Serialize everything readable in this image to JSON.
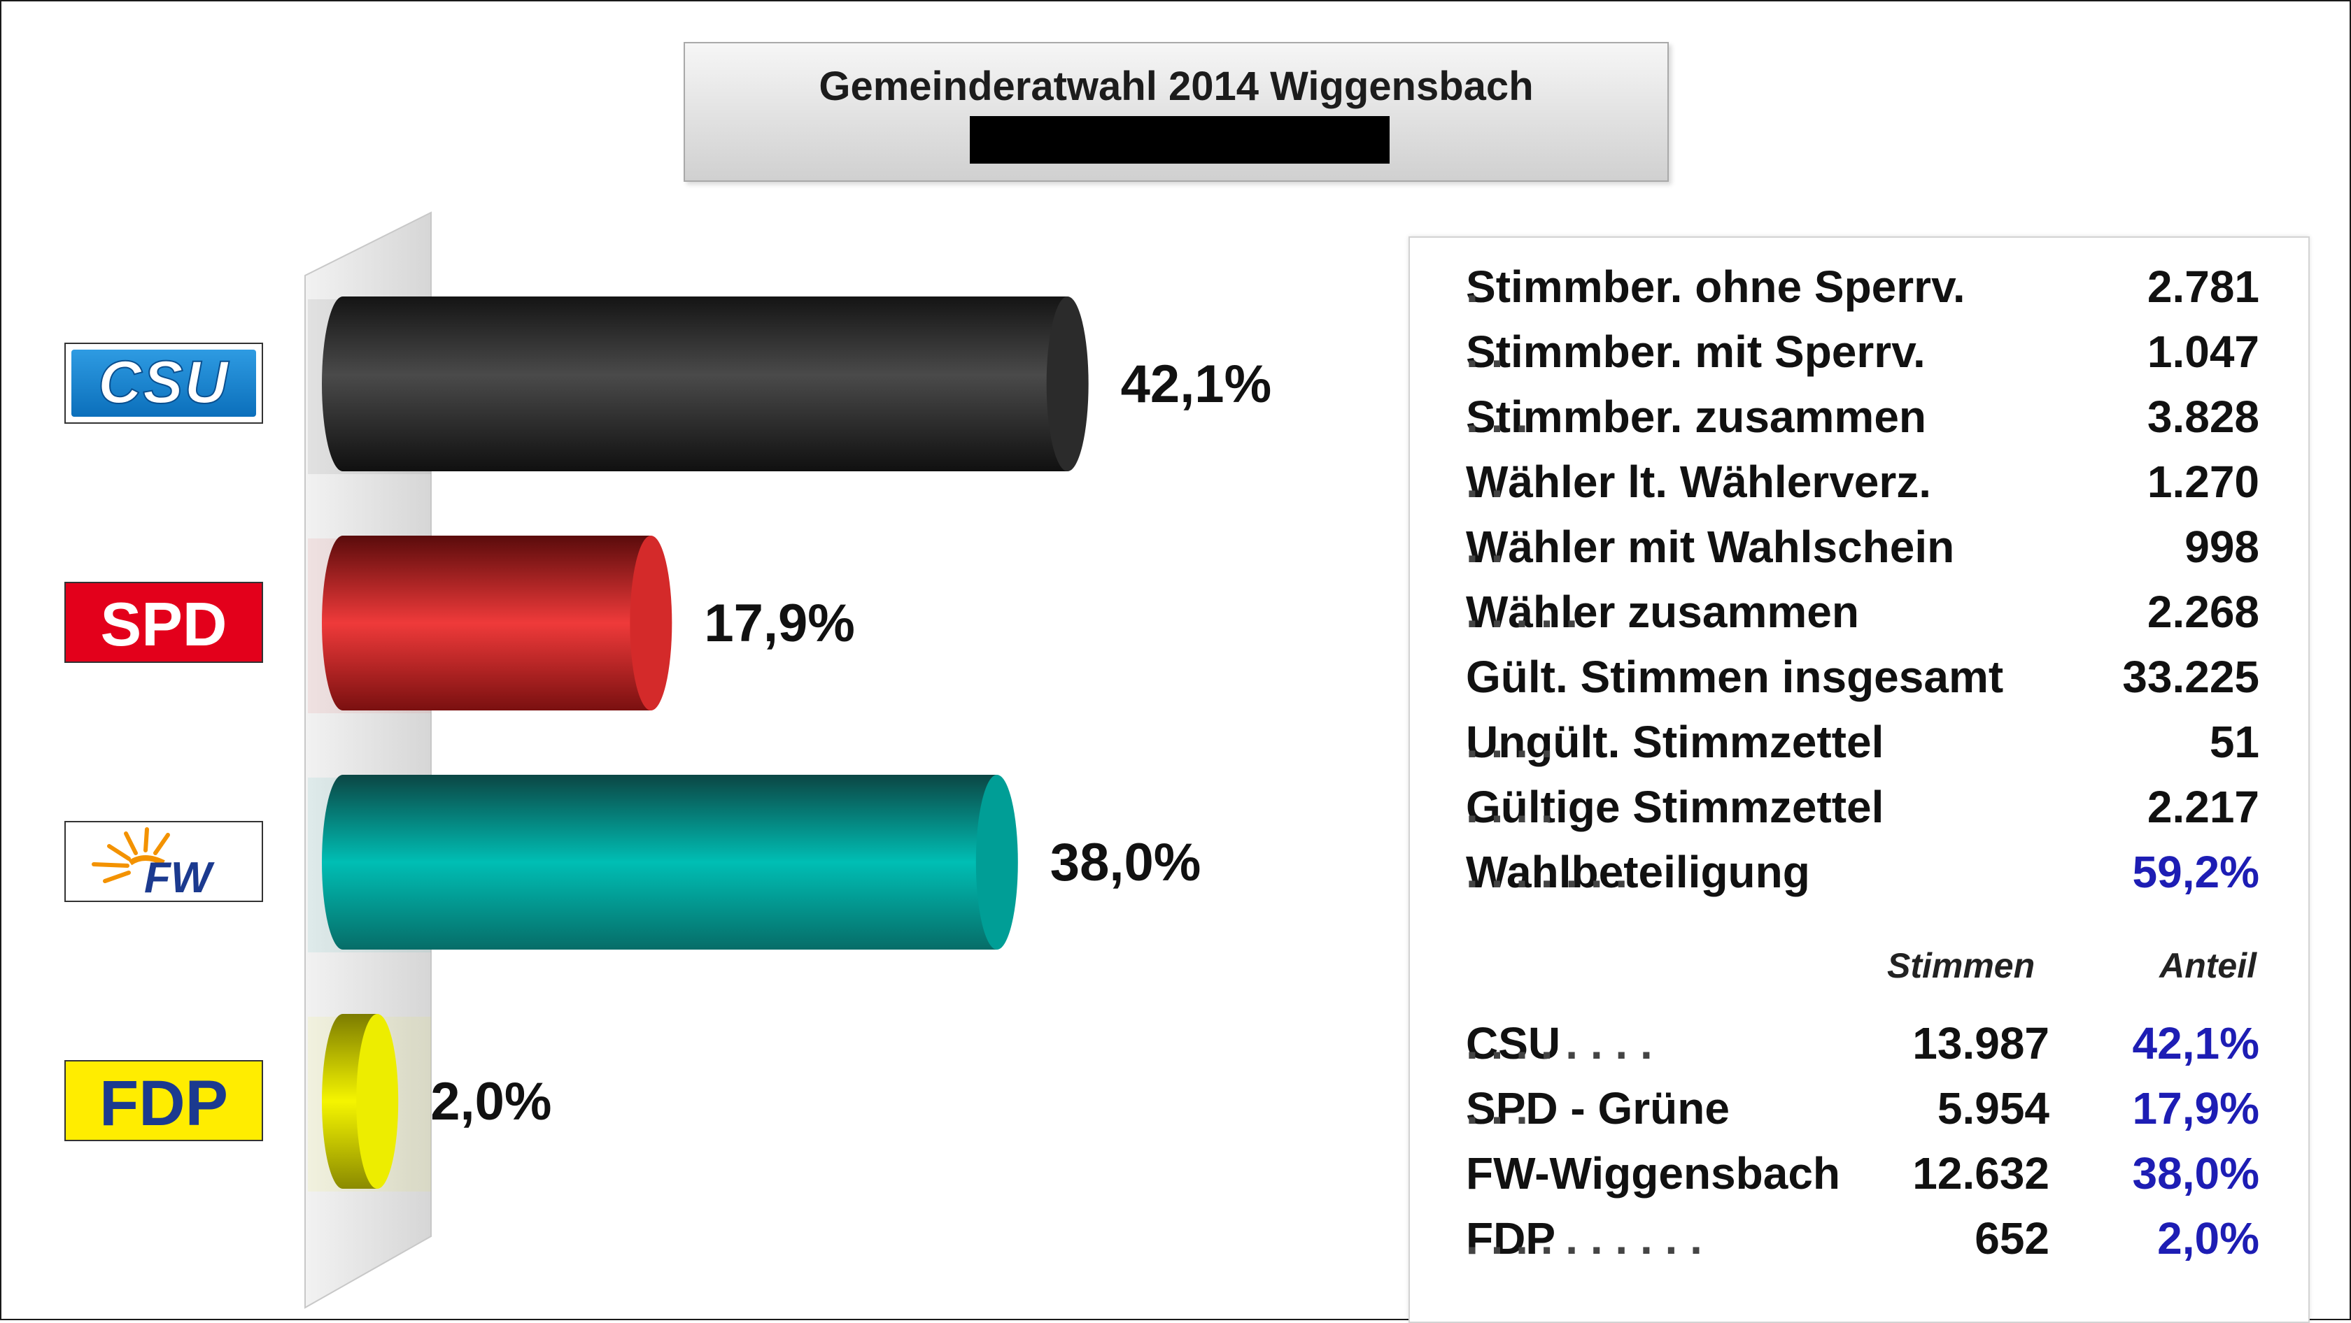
{
  "title": "Gemeinderatwahl 2014 Wiggensbach",
  "chart_data": {
    "type": "bar",
    "orientation": "horizontal",
    "categories": [
      "CSU",
      "SPD",
      "FW",
      "FDP"
    ],
    "values": [
      42.1,
      17.9,
      38.0,
      2.0
    ],
    "data_labels": [
      "42,1%",
      "17,9%",
      "38,0%",
      "2,0%"
    ],
    "colors": [
      "#2b2b2b",
      "#d42a2a",
      "#009e96",
      "#eded00"
    ],
    "xlim": [
      0,
      100
    ],
    "title": "Gemeinderatwahl 2014 Wiggensbach"
  },
  "logos": {
    "csu": "CSU",
    "spd": "SPD",
    "fw": "FW",
    "fdp": "FDP"
  },
  "stats": [
    {
      "label": "Stimmber. ohne Sperrv.",
      "dots": ".",
      "value": "2.781"
    },
    {
      "label": "Stimmber. mit Sperrv.",
      "dots": ". .",
      "value": "1.047"
    },
    {
      "label": "Stimmber. zusammen",
      "dots": ". . .",
      "value": "3.828"
    },
    {
      "label": "Wähler lt. Wählerverz.",
      "dots": ". .",
      "value": "1.270"
    },
    {
      "label": "Wähler mit Wahlschein",
      "dots": ". .",
      "value": "998"
    },
    {
      "label": "Wähler  zusammen",
      "dots": ". . . . .",
      "value": "2.268"
    },
    {
      "label": "Gült. Stimmen insgesamt",
      "dots": "",
      "value": "33.225"
    },
    {
      "label": "Ungült. Stimmzettel",
      "dots": ". . . .",
      "value": "51"
    },
    {
      "label": "Gültige Stimmzettel",
      "dots": ". . . .",
      "value": "2.217"
    },
    {
      "label": "Wahlbeteiligung",
      "dots": ". . . . . . .",
      "value": "59,2%"
    }
  ],
  "columns": {
    "votes": "Stimmen",
    "share": "Anteil"
  },
  "parties": [
    {
      "name": "CSU",
      "dots": ". . . . . . . .",
      "votes": "13.987",
      "share": "42,1%"
    },
    {
      "name": "SPD - Grüne",
      "dots": ". . .",
      "votes": "5.954",
      "share": "17,9%"
    },
    {
      "name": "FW-Wiggensbach",
      "dots": "",
      "votes": "12.632",
      "share": "38,0%"
    },
    {
      "name": "FDP",
      "dots": ". . . . . . . . . .",
      "votes": "652",
      "share": "2,0%"
    }
  ]
}
